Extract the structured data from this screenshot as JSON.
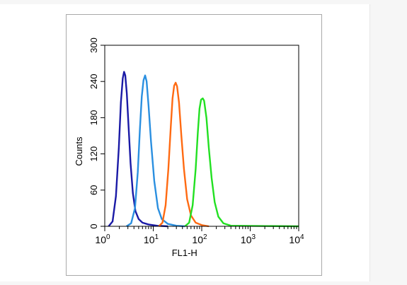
{
  "chart_data": {
    "type": "line",
    "title": "",
    "xlabel": "FL1-H",
    "ylabel": "Counts",
    "x_scale": "log",
    "xlim": [
      1,
      10000
    ],
    "ylim": [
      0,
      300
    ],
    "x_ticks": [
      {
        "base": "10",
        "exp": "0",
        "value": 1
      },
      {
        "base": "10",
        "exp": "1",
        "value": 10
      },
      {
        "base": "10",
        "exp": "2",
        "value": 100
      },
      {
        "base": "10",
        "exp": "3",
        "value": 1000
      },
      {
        "base": "10",
        "exp": "4",
        "value": 10000
      }
    ],
    "y_ticks": [
      "0",
      "60",
      "120",
      "180",
      "240",
      "300"
    ],
    "grid": false,
    "legend": "none",
    "series": [
      {
        "color": "#1a1aa6",
        "points": [
          [
            1.2,
            0
          ],
          [
            1.45,
            8
          ],
          [
            1.7,
            50
          ],
          [
            1.95,
            130
          ],
          [
            2.15,
            205
          ],
          [
            2.35,
            245
          ],
          [
            2.5,
            256
          ],
          [
            2.65,
            250
          ],
          [
            2.85,
            220
          ],
          [
            3.1,
            165
          ],
          [
            3.4,
            105
          ],
          [
            3.8,
            55
          ],
          [
            4.3,
            25
          ],
          [
            5.0,
            12
          ],
          [
            6.0,
            6
          ],
          [
            8.0,
            3
          ],
          [
            12,
            1
          ],
          [
            20,
            0
          ]
        ]
      },
      {
        "color": "#2a8fe0",
        "points": [
          [
            2.8,
            0
          ],
          [
            3.5,
            5
          ],
          [
            4.2,
            30
          ],
          [
            4.8,
            90
          ],
          [
            5.3,
            160
          ],
          [
            5.8,
            215
          ],
          [
            6.3,
            242
          ],
          [
            6.8,
            250
          ],
          [
            7.3,
            240
          ],
          [
            8.0,
            200
          ],
          [
            9.0,
            140
          ],
          [
            10.5,
            75
          ],
          [
            12.5,
            30
          ],
          [
            15,
            12
          ],
          [
            20,
            4
          ],
          [
            30,
            1
          ],
          [
            45,
            0
          ]
        ]
      },
      {
        "color": "#ff6a12",
        "points": [
          [
            13,
            0
          ],
          [
            15.5,
            6
          ],
          [
            18,
            35
          ],
          [
            20.5,
            95
          ],
          [
            23,
            165
          ],
          [
            25,
            212
          ],
          [
            27,
            233
          ],
          [
            29,
            238
          ],
          [
            31,
            232
          ],
          [
            34,
            205
          ],
          [
            38,
            150
          ],
          [
            43,
            95
          ],
          [
            50,
            45
          ],
          [
            60,
            18
          ],
          [
            75,
            6
          ],
          [
            100,
            2
          ],
          [
            140,
            0
          ]
        ]
      },
      {
        "color": "#22e022",
        "points": [
          [
            45,
            0
          ],
          [
            55,
            6
          ],
          [
            65,
            35
          ],
          [
            75,
            95
          ],
          [
            83,
            155
          ],
          [
            90,
            195
          ],
          [
            97,
            210
          ],
          [
            105,
            212
          ],
          [
            112,
            208
          ],
          [
            125,
            180
          ],
          [
            140,
            130
          ],
          [
            160,
            80
          ],
          [
            185,
            40
          ],
          [
            220,
            16
          ],
          [
            280,
            5
          ],
          [
            400,
            1
          ],
          [
            10000,
            0
          ]
        ]
      }
    ]
  }
}
